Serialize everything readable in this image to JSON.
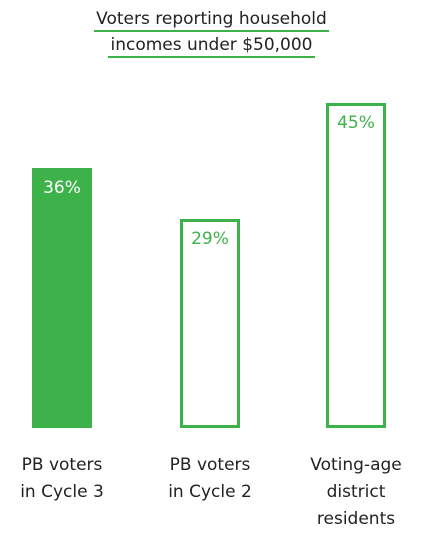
{
  "accent_color": "#3db24b",
  "chart_data": {
    "type": "bar",
    "title_lines": [
      "Voters reporting household",
      "incomes under $50,000"
    ],
    "categories": [
      [
        "PB voters",
        "in Cycle 3"
      ],
      [
        "PB voters",
        "in Cycle 2"
      ],
      [
        "Voting-age",
        "district",
        "residents"
      ]
    ],
    "values": [
      36,
      29,
      45
    ],
    "data_labels": [
      "36%",
      "29%",
      "45%"
    ],
    "styles": [
      "filled",
      "outline",
      "outline"
    ],
    "ylim": [
      0,
      50
    ]
  }
}
